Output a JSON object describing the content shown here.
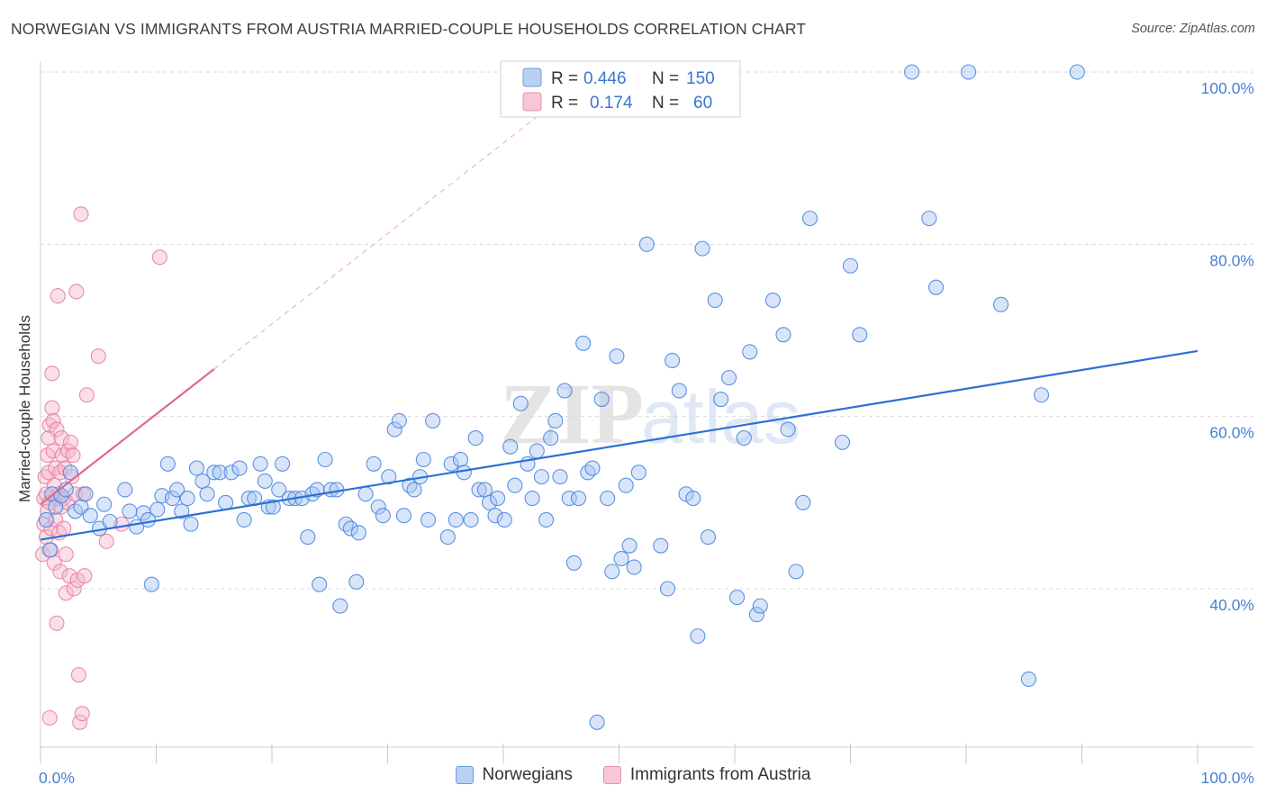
{
  "header": {
    "title": "NORWEGIAN VS IMMIGRANTS FROM AUSTRIA MARRIED-COUPLE HOUSEHOLDS CORRELATION CHART",
    "source": "Source: ZipAtlas.com"
  },
  "colors": {
    "blue": "#4a86e0",
    "blue_fill": "#a9c6f2",
    "blue_line": "#2e6fd6",
    "pink": "#e87fa2",
    "pink_fill": "#f5b8cc",
    "pink_line": "#e0688f",
    "grid": "#d9d9d9",
    "tick_text": "#4a7fd4"
  },
  "watermark": {
    "zip": "ZIP",
    "atlas": "atlas"
  },
  "chart_data": {
    "type": "scatter",
    "title": "NORWEGIAN VS IMMIGRANTS FROM AUSTRIA MARRIED-COUPLE HOUSEHOLDS CORRELATION CHART",
    "xlabel": "",
    "ylabel": "Married-couple Households",
    "xlim": [
      0,
      100
    ],
    "ylim": [
      20,
      102
    ],
    "x_tick_labels": [
      "0.0%",
      "100.0%"
    ],
    "y_ticks": [
      40,
      60,
      80,
      100
    ],
    "y_tick_labels": [
      "40.0%",
      "60.0%",
      "80.0%",
      "100.0%"
    ],
    "grid": "horizontal dashed",
    "legend": {
      "placement": "top-center",
      "rows": [
        {
          "r_label": "R =",
          "r_value": "0.446",
          "n_label": "N =",
          "n_value": "150"
        },
        {
          "r_label": "R =",
          "r_value": "0.174",
          "n_label": "N =",
          "n_value": "60"
        }
      ]
    },
    "series": [
      {
        "name": "Norwegians",
        "color": "#4a86e0",
        "trend": {
          "x": [
            0,
            100
          ],
          "y": [
            45.7,
            67.6
          ]
        },
        "points": [
          [
            0.5,
            48.0
          ],
          [
            0.8,
            44.5
          ],
          [
            1.0,
            51.0
          ],
          [
            1.3,
            49.5
          ],
          [
            1.8,
            50.8
          ],
          [
            2.2,
            51.5
          ],
          [
            2.6,
            53.5
          ],
          [
            3.0,
            49.0
          ],
          [
            3.5,
            49.5
          ],
          [
            3.9,
            51.0
          ],
          [
            4.3,
            48.5
          ],
          [
            5.1,
            47.0
          ],
          [
            5.5,
            49.8
          ],
          [
            6.0,
            47.8
          ],
          [
            7.3,
            51.5
          ],
          [
            7.7,
            49.0
          ],
          [
            8.3,
            47.2
          ],
          [
            8.9,
            48.8
          ],
          [
            9.3,
            48.0
          ],
          [
            9.6,
            40.5
          ],
          [
            10.1,
            49.2
          ],
          [
            10.5,
            50.8
          ],
          [
            11.0,
            54.5
          ],
          [
            11.4,
            50.5
          ],
          [
            11.8,
            51.5
          ],
          [
            12.2,
            49.0
          ],
          [
            12.7,
            50.5
          ],
          [
            13.0,
            47.5
          ],
          [
            13.5,
            54.0
          ],
          [
            14.0,
            52.5
          ],
          [
            14.4,
            51.0
          ],
          [
            15.0,
            53.5
          ],
          [
            15.5,
            53.5
          ],
          [
            16.0,
            50.0
          ],
          [
            16.5,
            53.5
          ],
          [
            17.2,
            54.0
          ],
          [
            17.6,
            48.0
          ],
          [
            18.0,
            50.5
          ],
          [
            18.5,
            50.5
          ],
          [
            19.0,
            54.5
          ],
          [
            19.4,
            52.5
          ],
          [
            19.7,
            49.5
          ],
          [
            20.1,
            49.5
          ],
          [
            20.6,
            51.5
          ],
          [
            20.9,
            54.5
          ],
          [
            21.5,
            50.5
          ],
          [
            22.0,
            50.5
          ],
          [
            22.6,
            50.5
          ],
          [
            23.1,
            46.0
          ],
          [
            23.5,
            51.0
          ],
          [
            23.9,
            51.5
          ],
          [
            24.1,
            40.5
          ],
          [
            24.6,
            55.0
          ],
          [
            25.1,
            51.5
          ],
          [
            25.6,
            51.5
          ],
          [
            25.9,
            38.0
          ],
          [
            26.4,
            47.5
          ],
          [
            26.8,
            47.0
          ],
          [
            27.5,
            46.5
          ],
          [
            27.3,
            40.8
          ],
          [
            28.1,
            51.0
          ],
          [
            28.8,
            54.5
          ],
          [
            29.2,
            49.5
          ],
          [
            29.6,
            48.5
          ],
          [
            30.1,
            53.0
          ],
          [
            30.6,
            58.5
          ],
          [
            31.0,
            59.5
          ],
          [
            31.4,
            48.5
          ],
          [
            31.9,
            52.0
          ],
          [
            32.3,
            51.5
          ],
          [
            32.8,
            53.0
          ],
          [
            33.1,
            55.0
          ],
          [
            33.5,
            48.0
          ],
          [
            33.9,
            59.5
          ],
          [
            35.2,
            46.0
          ],
          [
            35.5,
            54.5
          ],
          [
            35.9,
            48.0
          ],
          [
            36.3,
            55.0
          ],
          [
            36.6,
            53.5
          ],
          [
            37.2,
            48.0
          ],
          [
            37.6,
            57.5
          ],
          [
            37.9,
            51.5
          ],
          [
            38.4,
            51.5
          ],
          [
            38.8,
            50.0
          ],
          [
            39.3,
            48.5
          ],
          [
            39.5,
            50.5
          ],
          [
            40.1,
            48.0
          ],
          [
            40.6,
            56.5
          ],
          [
            41.0,
            52.0
          ],
          [
            41.5,
            61.5
          ],
          [
            42.1,
            54.5
          ],
          [
            42.5,
            50.5
          ],
          [
            42.9,
            56.0
          ],
          [
            43.3,
            53.0
          ],
          [
            43.7,
            48.0
          ],
          [
            44.1,
            57.5
          ],
          [
            44.5,
            59.5
          ],
          [
            44.9,
            53.0
          ],
          [
            45.3,
            63.0
          ],
          [
            45.7,
            50.5
          ],
          [
            46.1,
            43.0
          ],
          [
            46.5,
            50.5
          ],
          [
            46.9,
            68.5
          ],
          [
            47.3,
            53.5
          ],
          [
            47.7,
            54.0
          ],
          [
            48.1,
            24.5
          ],
          [
            48.5,
            62.0
          ],
          [
            49.0,
            50.5
          ],
          [
            49.4,
            42.0
          ],
          [
            49.8,
            67.0
          ],
          [
            50.2,
            43.5
          ],
          [
            50.6,
            52.0
          ],
          [
            50.9,
            45.0
          ],
          [
            51.3,
            42.5
          ],
          [
            51.7,
            53.5
          ],
          [
            52.4,
            80.0
          ],
          [
            53.6,
            45.0
          ],
          [
            54.2,
            40.0
          ],
          [
            54.6,
            66.5
          ],
          [
            55.2,
            63.0
          ],
          [
            55.8,
            51.0
          ],
          [
            56.4,
            50.5
          ],
          [
            56.8,
            34.5
          ],
          [
            57.2,
            79.5
          ],
          [
            57.7,
            46.0
          ],
          [
            58.3,
            73.5
          ],
          [
            58.8,
            62.0
          ],
          [
            59.5,
            64.5
          ],
          [
            60.2,
            39.0
          ],
          [
            60.8,
            57.5
          ],
          [
            61.3,
            67.5
          ],
          [
            61.9,
            37.0
          ],
          [
            62.2,
            38.0
          ],
          [
            63.3,
            73.5
          ],
          [
            64.2,
            69.5
          ],
          [
            64.6,
            58.5
          ],
          [
            65.3,
            42.0
          ],
          [
            65.9,
            50.0
          ],
          [
            66.5,
            83.0
          ],
          [
            69.3,
            57.0
          ],
          [
            70.0,
            77.5
          ],
          [
            70.8,
            69.5
          ],
          [
            75.3,
            100.0
          ],
          [
            76.8,
            83.0
          ],
          [
            77.4,
            75.0
          ],
          [
            80.2,
            100.0
          ],
          [
            83.0,
            73.0
          ],
          [
            85.4,
            29.5
          ],
          [
            86.5,
            62.5
          ],
          [
            89.6,
            100.0
          ]
        ]
      },
      {
        "name": "Immigrants from Austria",
        "color": "#e87fa2",
        "trend": {
          "x": [
            0,
            15
          ],
          "y": [
            49.8,
            65.5
          ]
        },
        "trend_extension": {
          "x": [
            15,
            45
          ],
          "y": [
            65.5,
            97
          ]
        },
        "points": [
          [
            0.2,
            44.0
          ],
          [
            0.3,
            47.5
          ],
          [
            0.3,
            50.5
          ],
          [
            0.4,
            53.0
          ],
          [
            0.5,
            51.0
          ],
          [
            0.5,
            46.0
          ],
          [
            0.6,
            49.0
          ],
          [
            0.6,
            55.5
          ],
          [
            0.7,
            57.5
          ],
          [
            0.7,
            53.5
          ],
          [
            0.8,
            59.0
          ],
          [
            0.8,
            50.0
          ],
          [
            0.9,
            47.0
          ],
          [
            0.9,
            44.5
          ],
          [
            1.0,
            61.0
          ],
          [
            1.0,
            65.0
          ],
          [
            1.1,
            59.5
          ],
          [
            1.1,
            56.0
          ],
          [
            1.2,
            52.0
          ],
          [
            1.2,
            43.0
          ],
          [
            1.3,
            54.0
          ],
          [
            1.3,
            48.0
          ],
          [
            1.4,
            58.5
          ],
          [
            1.4,
            36.0
          ],
          [
            1.5,
            74.0
          ],
          [
            1.5,
            50.5
          ],
          [
            1.6,
            51.0
          ],
          [
            1.6,
            46.5
          ],
          [
            1.7,
            53.5
          ],
          [
            1.7,
            42.0
          ],
          [
            1.8,
            57.5
          ],
          [
            1.8,
            49.5
          ],
          [
            1.9,
            55.5
          ],
          [
            2.0,
            50.5
          ],
          [
            2.0,
            47.0
          ],
          [
            2.1,
            54.0
          ],
          [
            2.2,
            39.5
          ],
          [
            2.2,
            44.0
          ],
          [
            2.3,
            50.0
          ],
          [
            2.4,
            56.0
          ],
          [
            2.5,
            41.5
          ],
          [
            2.6,
            57.0
          ],
          [
            2.7,
            53.0
          ],
          [
            2.8,
            55.5
          ],
          [
            2.9,
            40.0
          ],
          [
            3.0,
            51.0
          ],
          [
            3.1,
            74.5
          ],
          [
            3.2,
            41.0
          ],
          [
            3.3,
            30.0
          ],
          [
            3.4,
            24.5
          ],
          [
            3.5,
            83.5
          ],
          [
            3.6,
            25.5
          ],
          [
            3.7,
            51.0
          ],
          [
            3.8,
            41.5
          ],
          [
            4.0,
            62.5
          ],
          [
            5.0,
            67.0
          ],
          [
            5.7,
            45.5
          ],
          [
            7.0,
            47.5
          ],
          [
            10.3,
            78.5
          ],
          [
            0.8,
            25.0
          ]
        ]
      }
    ]
  },
  "bottom_legend": [
    {
      "label": "Norwegians"
    },
    {
      "label": "Immigrants from Austria"
    }
  ]
}
